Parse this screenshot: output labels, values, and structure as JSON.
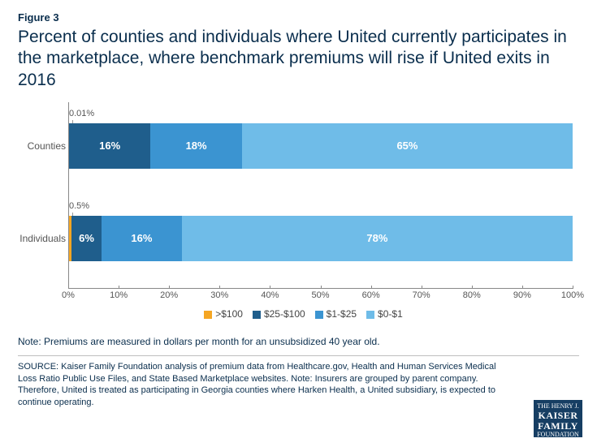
{
  "figure_label": "Figure 3",
  "title": "Percent of counties and individuals where United currently participates in the marketplace, where benchmark premiums will rise if United exits in 2016",
  "chart": {
    "type": "stacked_bar_horizontal",
    "xlim": [
      0,
      100
    ],
    "xtick_step": 10,
    "xtick_suffix": "%",
    "background_color": "#ffffff",
    "axis_color": "#888888",
    "label_color": "#555555",
    "label_fontsize": 12,
    "value_fontsize": 13,
    "legend_items": [
      {
        "label": ">$100",
        "color": "#f5a623"
      },
      {
        "label": "$25-$100",
        "color": "#1f5e8c"
      },
      {
        "label": "$1-$25",
        "color": "#3b94d1"
      },
      {
        "label": "$0-$1",
        "color": "#6fbce8"
      }
    ],
    "rows": [
      {
        "key": "counties",
        "label": "Counties",
        "callout": "0.01%",
        "segments": [
          {
            "value": 0.01,
            "color": "#f5a623",
            "text": ""
          },
          {
            "value": 16,
            "color": "#1f5e8c",
            "text": "16%"
          },
          {
            "value": 18,
            "color": "#3b94d1",
            "text": "18%"
          },
          {
            "value": 65,
            "color": "#6fbce8",
            "text": "65%"
          }
        ]
      },
      {
        "key": "individuals",
        "label": "Individuals",
        "callout": "0.5%",
        "segments": [
          {
            "value": 0.5,
            "color": "#f5a623",
            "text": ""
          },
          {
            "value": 6,
            "color": "#1f5e8c",
            "text": "6%"
          },
          {
            "value": 16,
            "color": "#3b94d1",
            "text": "16%"
          },
          {
            "value": 78,
            "color": "#6fbce8",
            "text": "78%"
          }
        ]
      }
    ]
  },
  "note": "Note: Premiums are measured in dollars per month for an unsubsidized 40 year old.",
  "source": "SOURCE: Kaiser Family Foundation analysis of premium data from Healthcare.gov, Health and Human Services Medical Loss Ratio Public Use Files, and State Based Marketplace websites. Note: Insurers are grouped by parent company. Therefore, United is treated as participating in Georgia counties where Harken Health, a United subsidiary, is expected to continue operating.",
  "logo": {
    "line1": "THE HENRY J.",
    "line2": "KAISER",
    "line3": "FAMILY",
    "line4": "FOUNDATION"
  }
}
